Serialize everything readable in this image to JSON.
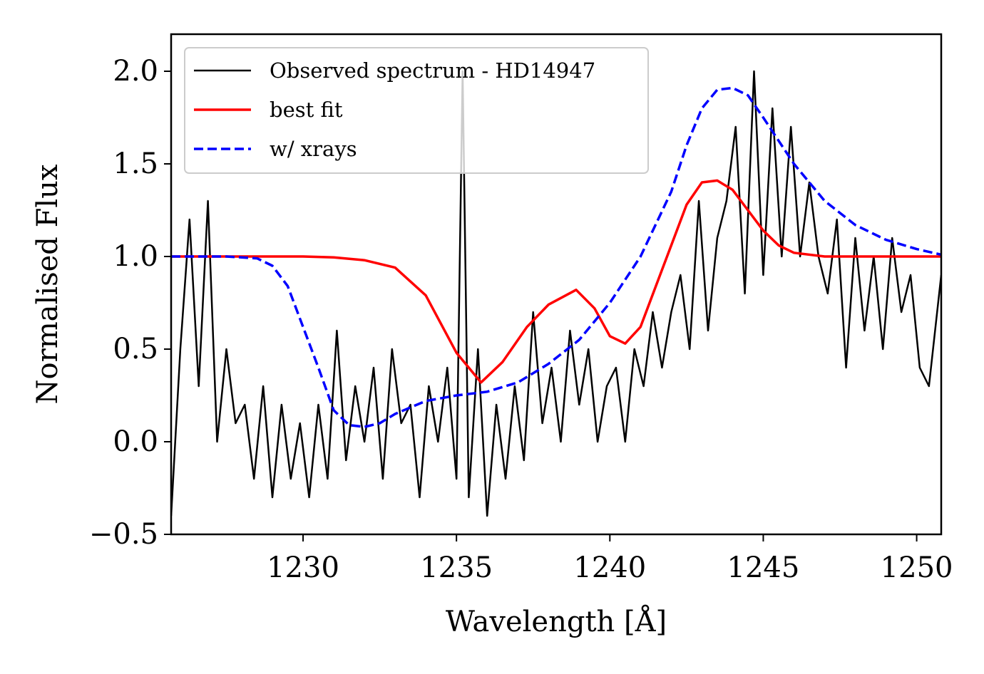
{
  "chart_data": {
    "type": "line",
    "title": "",
    "xlabel": "Wavelength [Å]",
    "ylabel": "Normalised Flux",
    "xlim": [
      1225.7,
      1250.8
    ],
    "ylim": [
      -0.5,
      2.2
    ],
    "xticks": [
      1230,
      1235,
      1240,
      1245,
      1250
    ],
    "yticks": [
      -0.5,
      0.0,
      0.5,
      1.0,
      1.5,
      2.0
    ],
    "xtick_labels": [
      "1230",
      "1235",
      "1240",
      "1245",
      "1250"
    ],
    "ytick_labels": [
      "−0.5",
      "0.0",
      "0.5",
      "1.0",
      "1.5",
      "2.0"
    ],
    "grid": false,
    "legend_position": "top-left",
    "series": [
      {
        "name": "Observed spectrum - HD14947",
        "color": "#000000",
        "style": "solid",
        "x": [
          1225.7,
          1226.0,
          1226.3,
          1226.6,
          1226.9,
          1227.2,
          1227.5,
          1227.8,
          1228.1,
          1228.4,
          1228.7,
          1229.0,
          1229.3,
          1229.6,
          1229.9,
          1230.2,
          1230.5,
          1230.8,
          1231.1,
          1231.4,
          1231.7,
          1232.0,
          1232.3,
          1232.6,
          1232.9,
          1233.2,
          1233.5,
          1233.8,
          1234.1,
          1234.4,
          1234.7,
          1235.0,
          1235.2,
          1235.4,
          1235.7,
          1236.0,
          1236.3,
          1236.6,
          1236.9,
          1237.2,
          1237.5,
          1237.8,
          1238.1,
          1238.4,
          1238.7,
          1239.0,
          1239.3,
          1239.6,
          1239.9,
          1240.2,
          1240.5,
          1240.8,
          1241.1,
          1241.4,
          1241.7,
          1242.0,
          1242.3,
          1242.6,
          1242.9,
          1243.2,
          1243.5,
          1243.8,
          1244.1,
          1244.4,
          1244.7,
          1245.0,
          1245.3,
          1245.6,
          1245.9,
          1246.2,
          1246.5,
          1246.8,
          1247.1,
          1247.4,
          1247.7,
          1248.0,
          1248.3,
          1248.6,
          1248.9,
          1249.2,
          1249.5,
          1249.8,
          1250.1,
          1250.4,
          1250.8
        ],
        "y": [
          -0.4,
          0.5,
          1.2,
          0.3,
          1.3,
          0.0,
          0.5,
          0.1,
          0.2,
          -0.2,
          0.3,
          -0.3,
          0.2,
          -0.2,
          0.1,
          -0.3,
          0.2,
          -0.2,
          0.6,
          -0.1,
          0.3,
          0.0,
          0.4,
          -0.2,
          0.5,
          0.1,
          0.2,
          -0.3,
          0.3,
          0.0,
          0.4,
          -0.2,
          2.0,
          -0.3,
          0.5,
          -0.4,
          0.2,
          -0.2,
          0.3,
          -0.1,
          0.7,
          0.1,
          0.4,
          0.0,
          0.6,
          0.2,
          0.5,
          0.0,
          0.3,
          0.4,
          0.0,
          0.5,
          0.3,
          0.7,
          0.4,
          0.7,
          0.9,
          0.5,
          1.3,
          0.6,
          1.1,
          1.3,
          1.7,
          0.8,
          2.0,
          0.9,
          1.8,
          1.0,
          1.7,
          1.0,
          1.4,
          1.0,
          0.8,
          1.2,
          0.4,
          1.1,
          0.6,
          1.0,
          0.5,
          1.1,
          0.7,
          0.9,
          0.4,
          0.3,
          0.9
        ]
      },
      {
        "name": "best fit",
        "color": "#ff0000",
        "style": "solid",
        "x": [
          1225.7,
          1227.0,
          1228.5,
          1230.0,
          1231.0,
          1232.0,
          1233.0,
          1234.0,
          1235.0,
          1235.8,
          1236.5,
          1237.3,
          1238.0,
          1238.9,
          1239.5,
          1240.0,
          1240.5,
          1241.0,
          1241.5,
          1242.0,
          1242.5,
          1243.0,
          1243.5,
          1244.0,
          1244.5,
          1245.0,
          1245.5,
          1246.0,
          1247.0,
          1248.0,
          1249.0,
          1250.8
        ],
        "y": [
          1.0,
          1.0,
          1.0,
          1.0,
          0.995,
          0.98,
          0.94,
          0.79,
          0.48,
          0.32,
          0.43,
          0.62,
          0.74,
          0.82,
          0.72,
          0.57,
          0.53,
          0.62,
          0.84,
          1.06,
          1.28,
          1.4,
          1.41,
          1.36,
          1.25,
          1.14,
          1.06,
          1.02,
          1.0,
          1.0,
          1.0,
          1.0
        ]
      },
      {
        "name": "w/ xrays",
        "color": "#0000ff",
        "style": "dashed",
        "x": [
          1225.7,
          1227.5,
          1228.5,
          1229.0,
          1229.5,
          1230.0,
          1230.5,
          1231.0,
          1231.5,
          1232.0,
          1232.5,
          1233.0,
          1234.0,
          1235.0,
          1236.0,
          1237.0,
          1238.0,
          1239.0,
          1240.0,
          1241.0,
          1242.0,
          1242.5,
          1243.0,
          1243.5,
          1244.0,
          1244.5,
          1245.0,
          1246.0,
          1247.0,
          1248.0,
          1249.0,
          1250.0,
          1250.8
        ],
        "y": [
          1.0,
          1.0,
          0.99,
          0.95,
          0.84,
          0.62,
          0.4,
          0.17,
          0.09,
          0.08,
          0.1,
          0.15,
          0.22,
          0.25,
          0.27,
          0.32,
          0.42,
          0.55,
          0.75,
          1.0,
          1.35,
          1.6,
          1.8,
          1.9,
          1.91,
          1.87,
          1.75,
          1.5,
          1.3,
          1.17,
          1.09,
          1.04,
          1.01
        ]
      }
    ]
  }
}
